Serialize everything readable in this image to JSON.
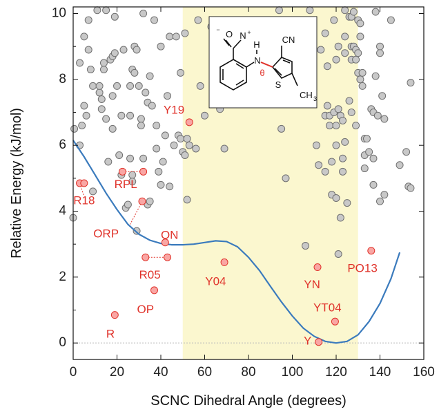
{
  "chart_data": {
    "type": "scatter",
    "xlabel": "SCNC Dihedral Angle (degrees)",
    "ylabel": "Relative Energy (kJ/mol)",
    "xlim": [
      0,
      160
    ],
    "ylim": [
      -0.5,
      10.2
    ],
    "x_ticks": [
      "0",
      "20",
      "40",
      "60",
      "80",
      "100",
      "120",
      "140",
      "160"
    ],
    "y_ticks": [
      "0",
      "2",
      "4",
      "6",
      "8",
      "10"
    ],
    "highlight_band": {
      "x0": 50,
      "x1": 130,
      "color": "#fbf7cf"
    },
    "zero_line": true,
    "colors": {
      "gray_point": "#c8c8c8",
      "gray_edge": "#707070",
      "red_point": "#f9a6a4",
      "red_edge": "#e0332b",
      "curve": "#3b7bbd",
      "label": "#e0332b"
    },
    "gray_points": [
      [
        0.5,
        6.5
      ],
      [
        0,
        3.8
      ],
      [
        3,
        6
      ],
      [
        3,
        8.5
      ],
      [
        4,
        6.6
      ],
      [
        5,
        9.3
      ],
      [
        5,
        7.2
      ],
      [
        6,
        6.9
      ],
      [
        7,
        8.9
      ],
      [
        7,
        9.8
      ],
      [
        8,
        8.3
      ],
      [
        9,
        4.6
      ],
      [
        9,
        7.8
      ],
      [
        11,
        10.1
      ],
      [
        12,
        7.6
      ],
      [
        12,
        7.8
      ],
      [
        13,
        7.1
      ],
      [
        13,
        7.4
      ],
      [
        14,
        8.3
      ],
      [
        14,
        8.5
      ],
      [
        15,
        6.8
      ],
      [
        15,
        10.1
      ],
      [
        16,
        5.5
      ],
      [
        17,
        8.6
      ],
      [
        18,
        8.7
      ],
      [
        18,
        7.5
      ],
      [
        18,
        6.5
      ],
      [
        19,
        8.8
      ],
      [
        19,
        9.9
      ],
      [
        20,
        7.8
      ],
      [
        21,
        5.7
      ],
      [
        22,
        6.9
      ],
      [
        22,
        5.1
      ],
      [
        23,
        8.9
      ],
      [
        24,
        4.1
      ],
      [
        25,
        4.2
      ],
      [
        26,
        5.6
      ],
      [
        26,
        6.9
      ],
      [
        26,
        7.8
      ],
      [
        27,
        5.1
      ],
      [
        27,
        4.9
      ],
      [
        27,
        8.3
      ],
      [
        28,
        9.0
      ],
      [
        28,
        8.2
      ],
      [
        29,
        8.9
      ],
      [
        29,
        3.4
      ],
      [
        30,
        7.8
      ],
      [
        31,
        6.8
      ],
      [
        31,
        6.6
      ],
      [
        32,
        10.0
      ],
      [
        32,
        5.6
      ],
      [
        33,
        7.6
      ],
      [
        34,
        4.2
      ],
      [
        34,
        7.3
      ],
      [
        35,
        4.3
      ],
      [
        35,
        8.1
      ],
      [
        36,
        7.2
      ],
      [
        37,
        9.8
      ],
      [
        38,
        6.6
      ],
      [
        38,
        5.9
      ],
      [
        39,
        5.2
      ],
      [
        40,
        4.8
      ],
      [
        40,
        9.0
      ],
      [
        41,
        5.5
      ],
      [
        42,
        6.3
      ],
      [
        43,
        7.5
      ],
      [
        44,
        9.3
      ],
      [
        44,
        4.75
      ],
      [
        46,
        6.0
      ],
      [
        47,
        9.3
      ],
      [
        48,
        6.3
      ],
      [
        49,
        6.2
      ],
      [
        49,
        8.2
      ],
      [
        50,
        5.8
      ],
      [
        51,
        9.4
      ],
      [
        51,
        5.7
      ],
      [
        52,
        4.35
      ],
      [
        52,
        6.2
      ],
      [
        53,
        6.0
      ],
      [
        56,
        5.9
      ],
      [
        57,
        9.8
      ],
      [
        58,
        7.8
      ],
      [
        60,
        6.9
      ],
      [
        63,
        9.6
      ],
      [
        64,
        9.5
      ],
      [
        67,
        7.1
      ],
      [
        69,
        5.9
      ],
      [
        94,
        10.1
      ],
      [
        95,
        6.5
      ],
      [
        97,
        5.0
      ],
      [
        106,
        2.95
      ],
      [
        108,
        10.1
      ],
      [
        109,
        7.4
      ],
      [
        111,
        6.0
      ],
      [
        112,
        5.4
      ],
      [
        113,
        8.9
      ],
      [
        115,
        6.9
      ],
      [
        115,
        5.2
      ],
      [
        115,
        9.4
      ],
      [
        116,
        7.2
      ],
      [
        116,
        8.4
      ],
      [
        117,
        6.9
      ],
      [
        117,
        6.6
      ],
      [
        118,
        5.5
      ],
      [
        118,
        4.5
      ],
      [
        119,
        9.8
      ],
      [
        119,
        7.0
      ],
      [
        120,
        4.4
      ],
      [
        120,
        6.6
      ],
      [
        120,
        6.0
      ],
      [
        120,
        8.6
      ],
      [
        121,
        2.7
      ],
      [
        121,
        9.0
      ],
      [
        121,
        7.1
      ],
      [
        122,
        6.9
      ],
      [
        122,
        3.8
      ],
      [
        123,
        6.75
      ],
      [
        123,
        5.6
      ],
      [
        123,
        5.2
      ],
      [
        124,
        10.1
      ],
      [
        124,
        8.8
      ],
      [
        124,
        9.3
      ],
      [
        124,
        6.1
      ],
      [
        125,
        4.25
      ],
      [
        126,
        9.9
      ],
      [
        126,
        7.35
      ],
      [
        127,
        8.6
      ],
      [
        127,
        9.9
      ],
      [
        127,
        7.0
      ],
      [
        127,
        9.0
      ],
      [
        128,
        9.0
      ],
      [
        128,
        10.05
      ],
      [
        129,
        8.6
      ],
      [
        129,
        8.9
      ],
      [
        129,
        6.6
      ],
      [
        130,
        8.2
      ],
      [
        130,
        9.8
      ],
      [
        130,
        8.8
      ],
      [
        131,
        9.3
      ],
      [
        131,
        9.7
      ],
      [
        131,
        8.0
      ],
      [
        132,
        7.8
      ],
      [
        132,
        8.2
      ],
      [
        133,
        5.7
      ],
      [
        133,
        6.2
      ],
      [
        133,
        5.3
      ],
      [
        134,
        6.2
      ],
      [
        135,
        5.8
      ],
      [
        136,
        7.1
      ],
      [
        137,
        5.6
      ],
      [
        137,
        7.0
      ],
      [
        137,
        4.8
      ],
      [
        138,
        10.05
      ],
      [
        138,
        8.1
      ],
      [
        139,
        6.9
      ],
      [
        140,
        9.0
      ],
      [
        140,
        8.8
      ],
      [
        140,
        4.3
      ],
      [
        141,
        7.5
      ],
      [
        142,
        6.8
      ],
      [
        142,
        4.5
      ],
      [
        145,
        9.8
      ],
      [
        149,
        5.4
      ],
      [
        152,
        5.8
      ],
      [
        153,
        4.75
      ],
      [
        154,
        4.7
      ],
      [
        154,
        7.9
      ]
    ],
    "red_points": [
      {
        "x": 3.0,
        "y": 4.85,
        "label": ""
      },
      {
        "x": 5.0,
        "y": 4.85,
        "label": ""
      },
      {
        "x": 19.0,
        "y": 0.85,
        "label": ""
      },
      {
        "x": 22.5,
        "y": 5.2,
        "label": ""
      },
      {
        "x": 32.0,
        "y": 5.2,
        "label": ""
      },
      {
        "x": 31.5,
        "y": 4.3,
        "label": ""
      },
      {
        "x": 33.0,
        "y": 2.6,
        "label": ""
      },
      {
        "x": 43.0,
        "y": 2.6,
        "label": ""
      },
      {
        "x": 37.0,
        "y": 1.6,
        "label": ""
      },
      {
        "x": 42.0,
        "y": 3.05,
        "label": ""
      },
      {
        "x": 53.0,
        "y": 6.7,
        "label": ""
      },
      {
        "x": 69.0,
        "y": 2.45,
        "label": ""
      },
      {
        "x": 111.5,
        "y": 2.3,
        "label": ""
      },
      {
        "x": 112.0,
        "y": 0.03,
        "label": ""
      },
      {
        "x": 119.5,
        "y": 0.65,
        "label": ""
      },
      {
        "x": 136.0,
        "y": 2.8,
        "label": ""
      }
    ],
    "annotations": [
      {
        "text": "R18",
        "x": 5,
        "y": 4.3
      },
      {
        "text": "RPL",
        "x": 24,
        "y": 4.8
      },
      {
        "text": "ORP",
        "x": 15,
        "y": 3.3
      },
      {
        "text": "ON",
        "x": 44,
        "y": 3.25
      },
      {
        "text": "R05",
        "x": 35,
        "y": 2.05
      },
      {
        "text": "OP",
        "x": 33,
        "y": 1.0
      },
      {
        "text": "R",
        "x": 17,
        "y": 0.25
      },
      {
        "text": "Y19",
        "x": 46,
        "y": 7.05
      },
      {
        "text": "Y04",
        "x": 65,
        "y": 1.85
      },
      {
        "text": "YN",
        "x": 109,
        "y": 1.75
      },
      {
        "text": "YT04",
        "x": 116,
        "y": 1.05
      },
      {
        "text": "Y",
        "x": 107,
        "y": 0.05
      },
      {
        "text": "PO13",
        "x": 132,
        "y": 2.25
      }
    ],
    "connectors": [
      {
        "from": [
          3,
          4.85
        ],
        "to": [
          5,
          4.85
        ]
      },
      {
        "from": [
          3,
          4.85
        ],
        "to": [
          5,
          4.45
        ]
      },
      {
        "from": [
          22.5,
          5.2
        ],
        "to": [
          32,
          5.2
        ]
      },
      {
        "from": [
          31.5,
          4.3
        ],
        "to": [
          26,
          3.6
        ]
      },
      {
        "from": [
          33,
          2.6
        ],
        "to": [
          43,
          2.6
        ]
      }
    ],
    "curve": [
      [
        0,
        6.15
      ],
      [
        5,
        5.65
      ],
      [
        10,
        5.1
      ],
      [
        15,
        4.55
      ],
      [
        20,
        4.05
      ],
      [
        25,
        3.6
      ],
      [
        30,
        3.3
      ],
      [
        35,
        3.12
      ],
      [
        40,
        3.02
      ],
      [
        45,
        2.98
      ],
      [
        50,
        2.98
      ],
      [
        55,
        3.0
      ],
      [
        60,
        3.05
      ],
      [
        65,
        3.1
      ],
      [
        70,
        3.08
      ],
      [
        75,
        2.92
      ],
      [
        80,
        2.6
      ],
      [
        85,
        2.2
      ],
      [
        90,
        1.72
      ],
      [
        95,
        1.25
      ],
      [
        100,
        0.82
      ],
      [
        105,
        0.45
      ],
      [
        110,
        0.2
      ],
      [
        115,
        0.05
      ],
      [
        120,
        0.0
      ],
      [
        125,
        0.05
      ],
      [
        130,
        0.25
      ],
      [
        135,
        0.65
      ],
      [
        140,
        1.2
      ],
      [
        145,
        1.95
      ],
      [
        149,
        2.75
      ]
    ],
    "structure_text": {
      "no2": "O",
      "n_plus": "N",
      "h": "H",
      "n": "N",
      "theta": "θ",
      "s": "S",
      "cn": "CN",
      "ch3": "CH",
      "sub3": "3",
      "plus": "+",
      "minus": "−"
    }
  }
}
